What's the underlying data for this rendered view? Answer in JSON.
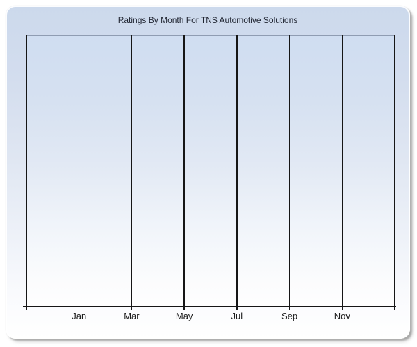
{
  "window": {
    "background_color": "#ffffff"
  },
  "chart_data": {
    "type": "line",
    "title": "Ratings By Month For TNS Automotive Solutions",
    "categories": [
      "Jan",
      "Mar",
      "May",
      "Jul",
      "Sep",
      "Nov"
    ],
    "series": [],
    "plot_empty": true,
    "xlabel": "",
    "ylabel": "",
    "legend": "none",
    "x_gridline_count": 8,
    "y_gridlines": false,
    "grid": "vertical-only"
  },
  "colors": {
    "panel_gradient_top": "#ccd9ec",
    "panel_gradient_bottom": "#ffffff",
    "plot_gradient_top": "#cfddf1",
    "plot_gradient_bottom": "#fefefe",
    "plot_top_border": "#8f9cb2",
    "gridline": "#161616",
    "axis_line": "#161616",
    "title_text": "#1f2430",
    "tick_label_text": "#1c1c1c",
    "panel_border": "#fbfbfb",
    "shadow": "#9e9e9e"
  }
}
